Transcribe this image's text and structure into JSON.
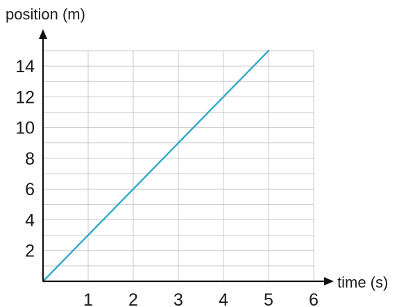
{
  "chart_data": {
    "type": "line",
    "xlabel": "time (s)",
    "ylabel": "position (m)",
    "xlim": [
      0,
      6
    ],
    "ylim": [
      0,
      15
    ],
    "x_ticks": [
      1,
      2,
      3,
      4,
      5,
      6
    ],
    "y_ticks": [
      2,
      4,
      6,
      8,
      10,
      12,
      14
    ],
    "x_grid_step": 1,
    "y_grid_step": 1,
    "grid": true,
    "series": [
      {
        "x": [
          0,
          5
        ],
        "y": [
          0,
          15
        ],
        "color": "#2fa9c8"
      }
    ]
  },
  "colors": {
    "grid": "#c9c9c9",
    "axis": "#111111",
    "line": "#2fa9c8"
  }
}
